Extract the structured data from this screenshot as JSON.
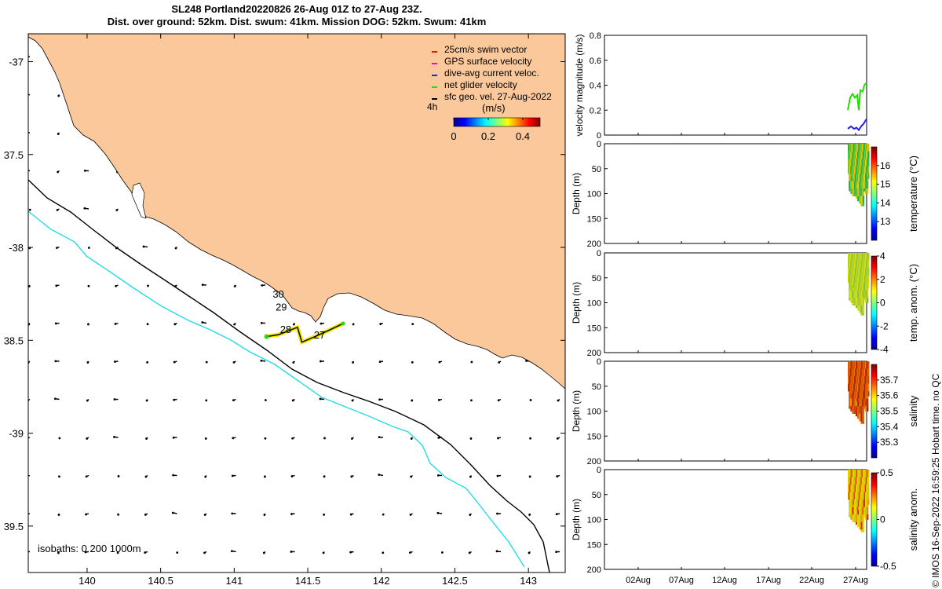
{
  "title": {
    "line1": "SL248 Portland20220826 26-Aug 01Z to 27-Aug 23Z.",
    "line2": "Dist. over ground: 52km. Dist. swum: 41km. Mission DOG: 52km. Swum: 41km"
  },
  "colors": {
    "land": "#fac89b",
    "isobath_200": "#000000",
    "isobath_1000": "#22dde8",
    "track": "#111111",
    "track_highlight": "#f2e800",
    "swim_vector": "#cc2200",
    "gps_velocity": "#ee00ee",
    "dive_avg": "#2222ee",
    "net_velocity": "#22dd00"
  },
  "map": {
    "xlim": [
      139.6,
      143.25
    ],
    "ylim": [
      -39.75,
      -36.85
    ],
    "x_ticks": [
      140,
      140.5,
      141,
      141.5,
      142,
      142.5,
      143
    ],
    "x_tick_labels": [
      "140",
      "140.5",
      "141",
      "141.5",
      "142",
      "142.5",
      "143"
    ],
    "y_ticks": [
      -37,
      -37.5,
      -38,
      -38.5,
      -39,
      -39.5
    ],
    "y_tick_labels": [
      "-37",
      "37.5",
      "-38",
      "38.5",
      "-39",
      "39.5"
    ],
    "isobaths_label": "isobaths: 0   200  1000m",
    "legend": [
      {
        "label": "25cm/s swim vector",
        "color": "#cc2200"
      },
      {
        "label": "GPS surface velocity",
        "color": "#ee00ee"
      },
      {
        "label": "dive-avg current veloc.",
        "color": "#2222ee"
      },
      {
        "label": "net glider velocity",
        "color": "#22dd00"
      },
      {
        "label": "sfc geo. vel. 27-Aug-2022",
        "color": "#000000"
      }
    ],
    "legend_extra": "4h",
    "colorbar": {
      "label": "(m/s)",
      "ticks": [
        "0",
        "0.2",
        "0.4"
      ],
      "range": [
        0,
        0.5
      ]
    },
    "day_labels": [
      {
        "text": "30",
        "lon": 141.3,
        "lat": -38.27
      },
      {
        "text": "29",
        "lon": 141.32,
        "lat": -38.34
      },
      {
        "text": "28",
        "lon": 141.35,
        "lat": -38.46
      },
      {
        "text": "27",
        "lon": 141.58,
        "lat": -38.49
      }
    ],
    "track": [
      [
        141.22,
        -38.48
      ],
      [
        141.3,
        -38.47
      ],
      [
        141.43,
        -38.43
      ],
      [
        141.46,
        -38.51
      ],
      [
        141.55,
        -38.48
      ],
      [
        141.66,
        -38.44
      ],
      [
        141.74,
        -38.41
      ]
    ]
  },
  "right_panels": {
    "x_ticks": [
      "02Aug",
      "07Aug",
      "12Aug",
      "17Aug",
      "22Aug",
      "27Aug"
    ],
    "velocity": {
      "ylabel": "velocity magnitude (m/s)",
      "y_ticks": [
        "0",
        "0.2",
        "0.4",
        "0.6",
        "0.8"
      ],
      "ylim": [
        0,
        0.8
      ]
    },
    "profiles": [
      {
        "ylabel": "Depth (m)",
        "clabel": "temperature (°C)",
        "cticks": [
          "13",
          "14",
          "15",
          "16"
        ],
        "crange": [
          12,
          17
        ],
        "y_ticks": [
          "0",
          "50",
          "100",
          "150",
          "200"
        ]
      },
      {
        "ylabel": "Depth (m)",
        "clabel": "temp. anom. (°C)",
        "cticks": [
          "-4",
          "-2",
          "0",
          "2",
          "4"
        ],
        "crange": [
          -4,
          4
        ],
        "y_ticks": [
          "0",
          "50",
          "100",
          "150",
          "200"
        ]
      },
      {
        "ylabel": "Depth (m)",
        "clabel": "salinity",
        "cticks": [
          "35.3",
          "35.4",
          "35.5",
          "35.6",
          "35.7"
        ],
        "crange": [
          35.2,
          35.8
        ],
        "y_ticks": [
          "0",
          "50",
          "100",
          "150",
          "200"
        ]
      },
      {
        "ylabel": "Depth (m)",
        "clabel": "salinity anom.",
        "cticks": [
          "-0.5",
          "0",
          "0.5"
        ],
        "crange": [
          -0.5,
          0.5
        ],
        "y_ticks": [
          "0",
          "50",
          "100",
          "150",
          "200"
        ]
      }
    ]
  },
  "copyright": "© IMOS 16-Sep-2022 16:59:25 Hobart time. no QC",
  "chart_data": [
    {
      "type": "scatter",
      "title": "SL248 Portland20220826 26-Aug 01Z to 27-Aug 23Z.",
      "xlabel": "",
      "ylabel": "",
      "xlim": [
        139.6,
        143.25
      ],
      "ylim": [
        -39.75,
        -36.85
      ],
      "series": [
        {
          "name": "net glider velocity",
          "x": [
            141.22,
            141.3,
            141.43,
            141.46,
            141.55,
            141.66,
            141.74
          ],
          "y": [
            -38.48,
            -38.47,
            -38.43,
            -38.51,
            -38.48,
            -38.44,
            -38.41
          ]
        }
      ]
    },
    {
      "type": "line",
      "ylabel": "velocity magnitude (m/s)",
      "ylim": [
        0,
        0.8
      ],
      "series": [
        {
          "name": "net glider velocity",
          "x": [
            "26Aug",
            "27Aug",
            "28Aug"
          ],
          "y": [
            0.2,
            0.33,
            0.42
          ]
        },
        {
          "name": "dive-avg current veloc.",
          "x": [
            "26Aug",
            "27Aug",
            "28Aug"
          ],
          "y": [
            0.03,
            0.07,
            0.12
          ]
        }
      ]
    },
    {
      "type": "heatmap",
      "ylabel": "Depth (m)",
      "clabel": "temperature (°C)",
      "ylim": [
        200,
        0
      ],
      "crange": [
        12,
        17
      ]
    },
    {
      "type": "heatmap",
      "ylabel": "Depth (m)",
      "clabel": "temp. anom. (°C)",
      "ylim": [
        200,
        0
      ],
      "crange": [
        -4,
        4
      ]
    },
    {
      "type": "heatmap",
      "ylabel": "Depth (m)",
      "clabel": "salinity",
      "ylim": [
        200,
        0
      ],
      "crange": [
        35.2,
        35.8
      ]
    },
    {
      "type": "heatmap",
      "ylabel": "Depth (m)",
      "clabel": "salinity anom.",
      "ylim": [
        200,
        0
      ],
      "crange": [
        -0.5,
        0.5
      ]
    }
  ]
}
